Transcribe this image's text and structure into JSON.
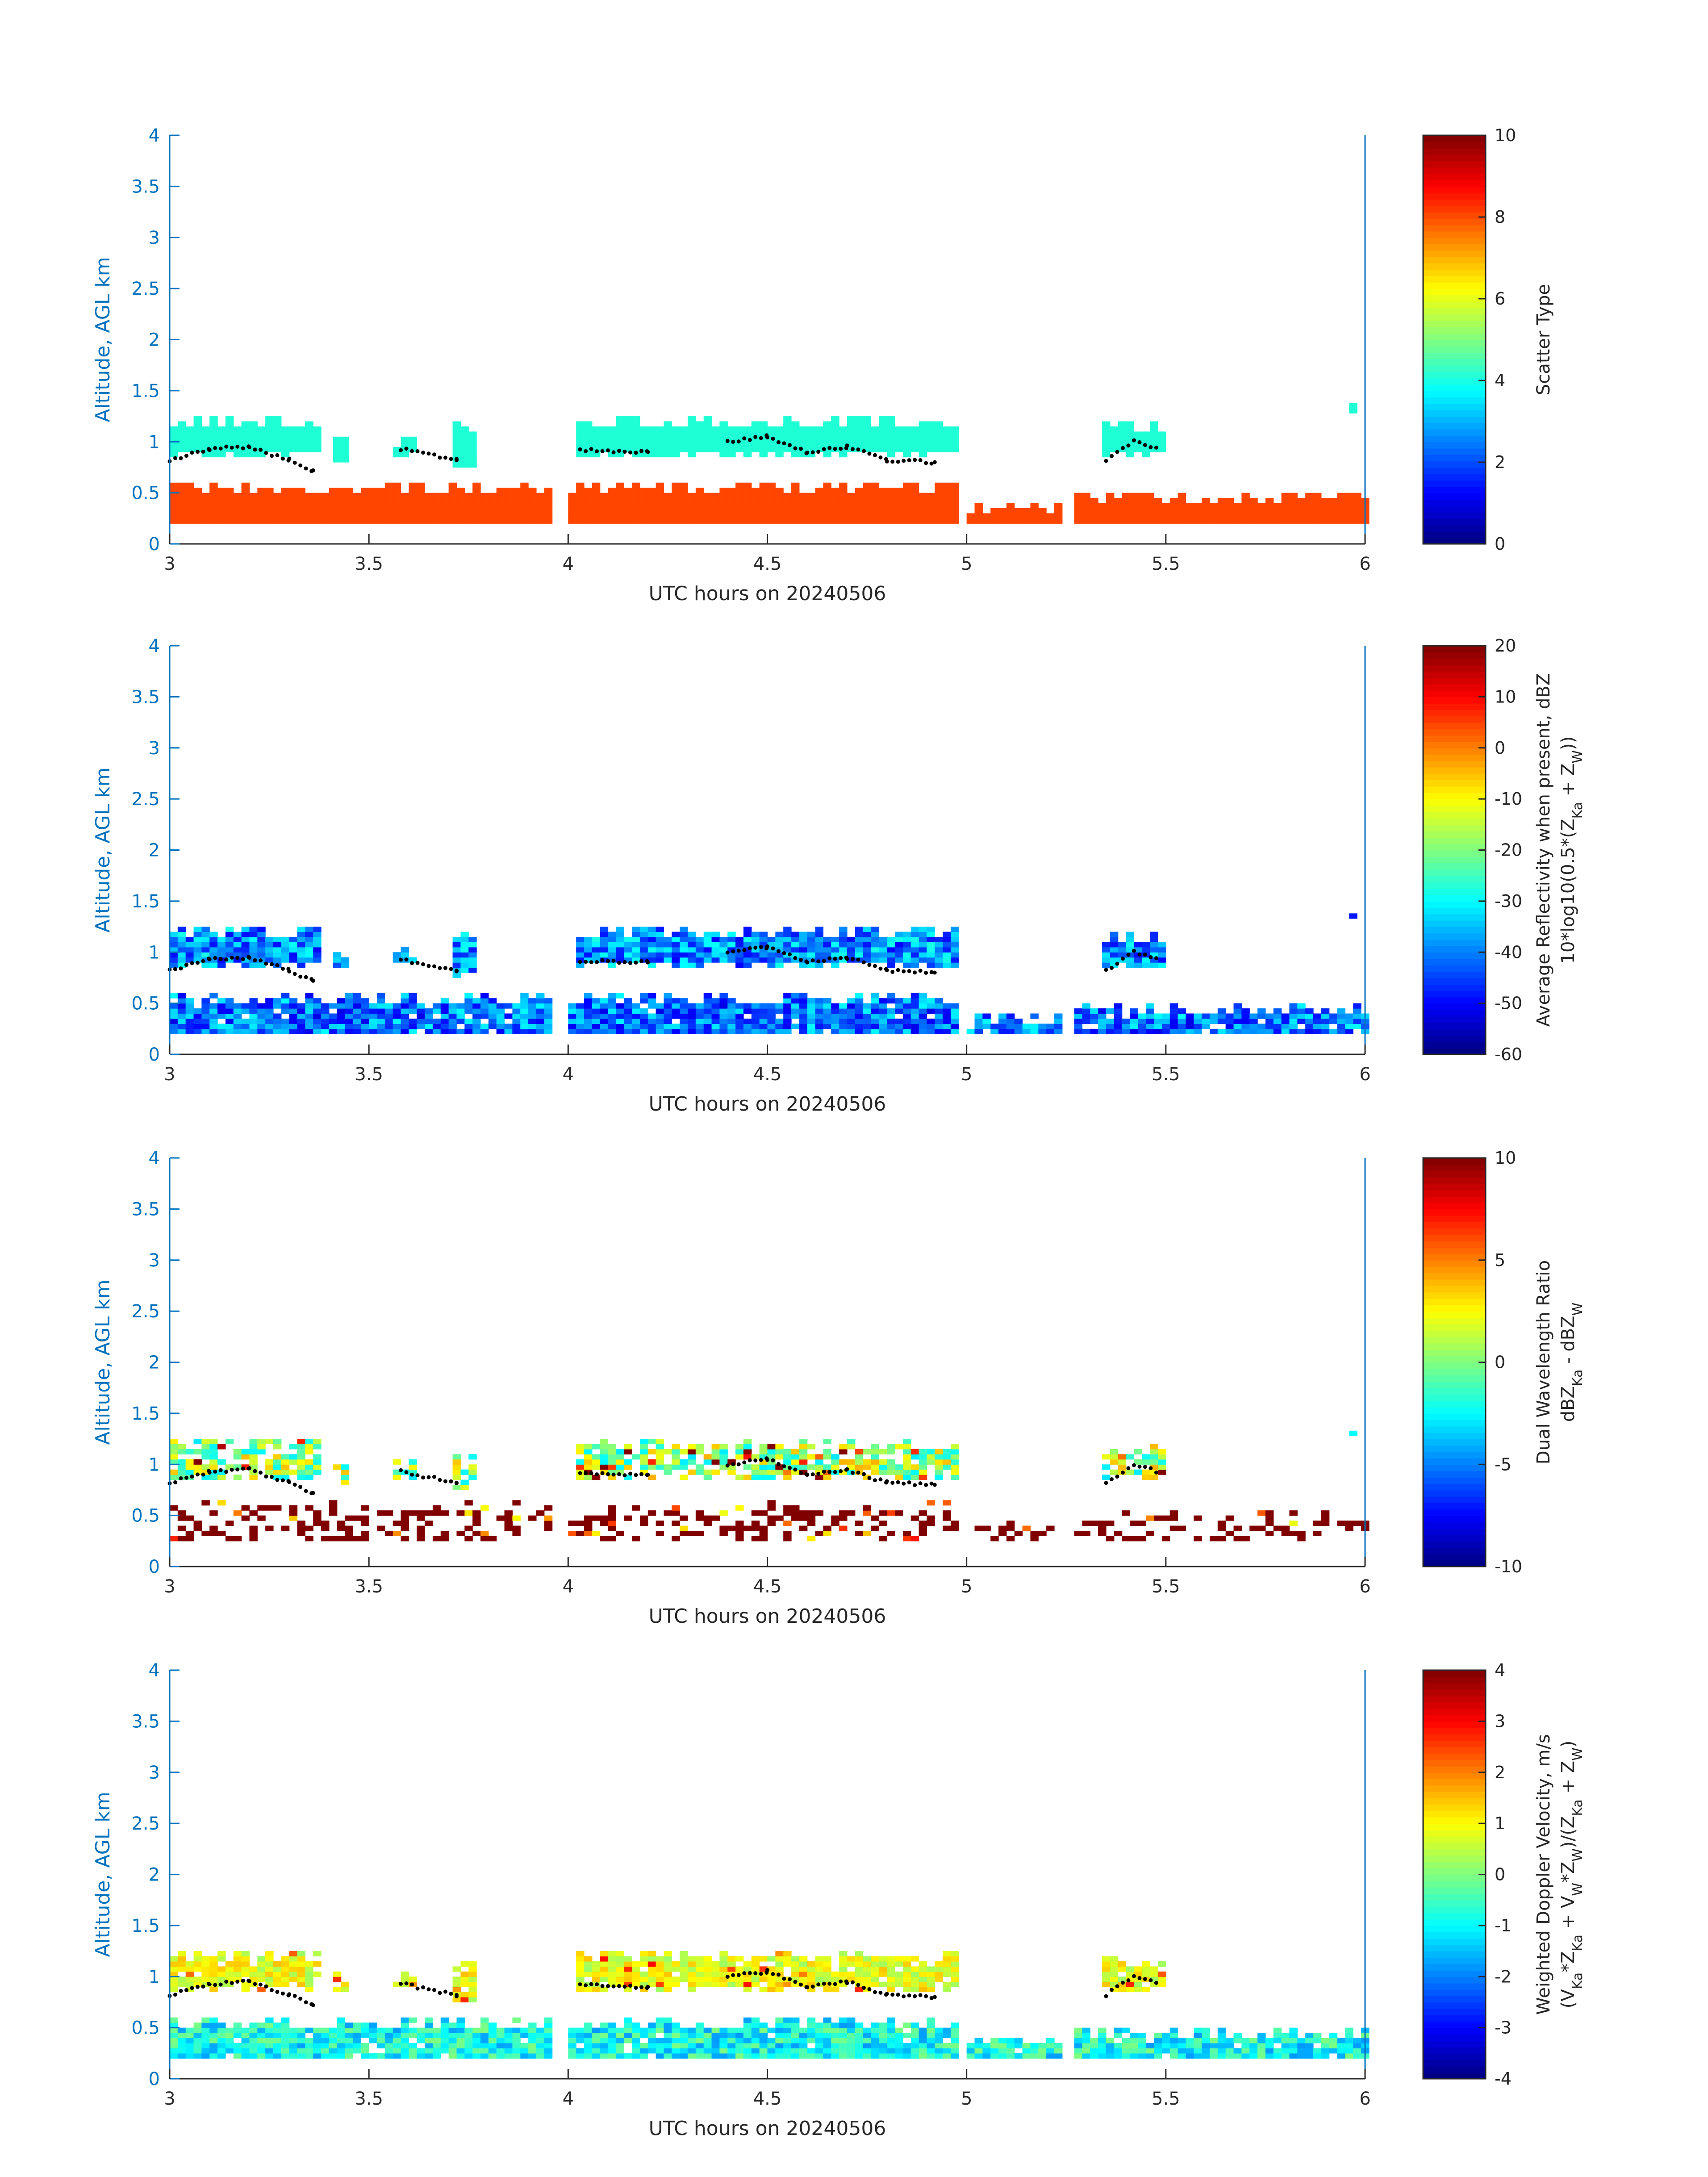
{
  "chart_data": [
    {
      "type": "heatmap",
      "xlabel": "UTC hours on 20240506",
      "ylabel": "Altitude, AGL km",
      "xlim": [
        3,
        6
      ],
      "ylim": [
        0,
        4
      ],
      "xticks": [
        "3",
        "3.5",
        "4",
        "4.5",
        "5",
        "5.5",
        "6"
      ],
      "yticks": [
        "0",
        "0.5",
        "1",
        "1.5",
        "2",
        "2.5",
        "3",
        "3.5",
        "4"
      ],
      "colorbar": {
        "label": "Scatter Type",
        "sublabel": "",
        "range": [
          0,
          10
        ],
        "ticks": [
          "0",
          "2",
          "4",
          "6",
          "8",
          "10"
        ],
        "colormap": "jet"
      },
      "field": "scatter_type",
      "colors": {
        "cloud": "#1effd5",
        "precip": "#ff4500",
        "melting_layer_dots": "#000000"
      }
    },
    {
      "type": "heatmap",
      "xlabel": "UTC hours on 20240506",
      "ylabel": "Altitude, AGL km",
      "xlim": [
        3,
        6
      ],
      "ylim": [
        0,
        4
      ],
      "xticks": [
        "3",
        "3.5",
        "4",
        "4.5",
        "5",
        "5.5",
        "6"
      ],
      "yticks": [
        "0",
        "0.5",
        "1",
        "1.5",
        "2",
        "2.5",
        "3",
        "3.5",
        "4"
      ],
      "colorbar": {
        "label": "Average Reflectivity when present, dBZ",
        "sublabel": "10*log10(0.5*(Z_Ka + Z_W))",
        "range": [
          -60,
          20
        ],
        "ticks": [
          "-60",
          "-50",
          "-40",
          "-30",
          "-20",
          "-10",
          "0",
          "10",
          "20"
        ],
        "colormap": "jet"
      },
      "field": "reflectivity"
    },
    {
      "type": "heatmap",
      "xlabel": "UTC hours on 20240506",
      "ylabel": "Altitude, AGL km",
      "xlim": [
        3,
        6
      ],
      "ylim": [
        0,
        4
      ],
      "xticks": [
        "3",
        "3.5",
        "4",
        "4.5",
        "5",
        "5.5",
        "6"
      ],
      "yticks": [
        "0",
        "0.5",
        "1",
        "1.5",
        "2",
        "2.5",
        "3",
        "3.5",
        "4"
      ],
      "colorbar": {
        "label": "Dual Wavelength Ratio",
        "sublabel": "dBZ_Ka - dBZ_W",
        "range": [
          -10,
          10
        ],
        "ticks": [
          "-10",
          "-5",
          "0",
          "5",
          "10"
        ],
        "colormap": "jet"
      },
      "field": "dwr"
    },
    {
      "type": "heatmap",
      "xlabel": "UTC hours on 20240506",
      "ylabel": "Altitude, AGL km",
      "xlim": [
        3,
        6
      ],
      "ylim": [
        0,
        4
      ],
      "xticks": [
        "3",
        "3.5",
        "4",
        "4.5",
        "5",
        "5.5",
        "6"
      ],
      "yticks": [
        "0",
        "0.5",
        "1",
        "1.5",
        "2",
        "2.5",
        "3",
        "3.5",
        "4"
      ],
      "colorbar": {
        "label": "Weighted Doppler Velocity, m/s",
        "sublabel": "(V_Ka*Z_Ka + V_W*Z_W)/(Z_Ka + Z_W)",
        "range": [
          -4,
          4
        ],
        "ticks": [
          "-4",
          "-3",
          "-2",
          "-1",
          "0",
          "1",
          "2",
          "3",
          "4"
        ],
        "colormap": "jet"
      },
      "field": "velocity"
    }
  ],
  "shared": {
    "cloud_segments": [
      [
        3.0,
        3.37,
        0.85,
        1.25
      ],
      [
        3.41,
        3.45,
        0.8,
        1.05
      ],
      [
        3.56,
        3.62,
        0.85,
        1.05
      ],
      [
        3.71,
        3.77,
        0.75,
        1.2
      ],
      [
        4.02,
        4.97,
        0.85,
        1.25
      ],
      [
        5.34,
        5.49,
        0.85,
        1.2
      ],
      [
        5.94,
        5.97,
        1.28,
        1.38
      ]
    ],
    "precip_segments": [
      [
        3.0,
        3.96,
        0.2,
        0.6
      ],
      [
        4.0,
        4.98,
        0.2,
        0.6
      ],
      [
        5.0,
        5.24,
        0.2,
        0.4
      ],
      [
        5.27,
        6.0,
        0.2,
        0.5
      ]
    ],
    "melting_layer": [
      [
        3.0,
        0.82
      ],
      [
        3.1,
        0.93
      ],
      [
        3.2,
        0.95
      ],
      [
        3.3,
        0.82
      ],
      [
        3.36,
        0.72
      ],
      [
        3.58,
        0.93
      ],
      [
        3.72,
        0.82
      ],
      [
        4.03,
        0.92
      ],
      [
        4.2,
        0.9
      ],
      [
        4.4,
        1.0
      ],
      [
        4.5,
        1.05
      ],
      [
        4.6,
        0.9
      ],
      [
        4.7,
        0.95
      ],
      [
        4.8,
        0.82
      ],
      [
        4.92,
        0.8
      ],
      [
        5.35,
        0.82
      ],
      [
        5.42,
        1.0
      ],
      [
        5.48,
        0.93
      ]
    ]
  }
}
